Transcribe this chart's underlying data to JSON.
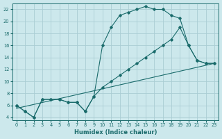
{
  "xlabel": "Humidex (Indice chaleur)",
  "bg_color": "#cce8ec",
  "grid_color": "#aacdd4",
  "line_color": "#1a6b6b",
  "xlim": [
    -0.5,
    23.5
  ],
  "ylim": [
    3.5,
    23
  ],
  "xticks": [
    0,
    1,
    2,
    3,
    4,
    5,
    6,
    7,
    8,
    9,
    10,
    11,
    12,
    13,
    14,
    15,
    16,
    17,
    18,
    19,
    20,
    21,
    22,
    23
  ],
  "yticks": [
    4,
    6,
    8,
    10,
    12,
    14,
    16,
    18,
    20,
    22
  ],
  "series": [
    {
      "x": [
        0,
        1,
        2,
        3,
        4,
        5,
        6,
        7,
        8,
        9,
        10,
        11,
        12,
        13,
        14,
        15,
        16,
        17,
        18,
        19,
        20,
        21,
        22,
        23
      ],
      "y": [
        6,
        5,
        4,
        7,
        7,
        7,
        6.5,
        6.5,
        5,
        7.5,
        16,
        19,
        21,
        21.5,
        22,
        22.5,
        22,
        22,
        21,
        20.5,
        16,
        13.5,
        13,
        13
      ]
    },
    {
      "x": [
        0,
        1,
        2,
        3,
        4,
        5,
        6,
        7,
        8,
        9,
        10,
        11,
        12,
        13,
        14,
        15,
        16,
        17,
        18,
        19,
        20,
        21,
        22,
        23
      ],
      "y": [
        6,
        5,
        4,
        7,
        7,
        7,
        6.5,
        6.5,
        5,
        7.5,
        9,
        10,
        11,
        12,
        13,
        14,
        15,
        16,
        17,
        19,
        16,
        13.5,
        13,
        13
      ]
    },
    {
      "x": [
        0,
        23
      ],
      "y": [
        5.5,
        13
      ]
    }
  ]
}
